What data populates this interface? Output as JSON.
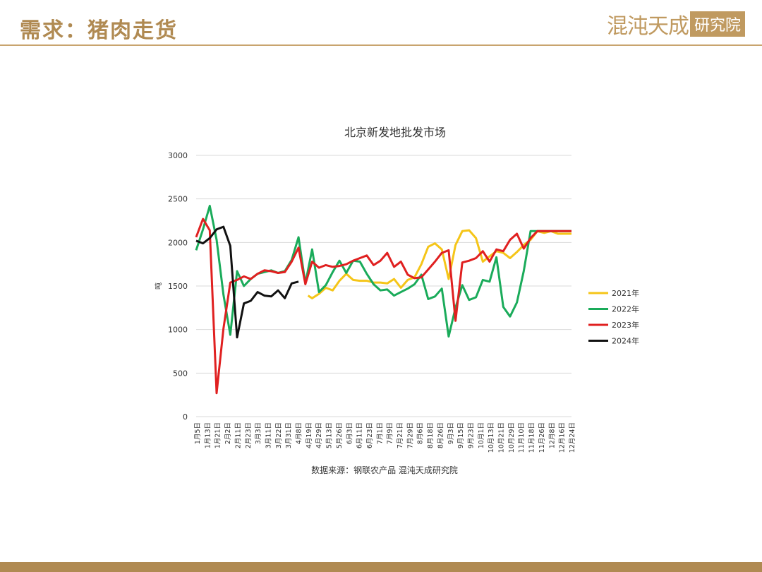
{
  "header": {
    "title": "需求：猪肉走货",
    "logo_main": "混沌天成",
    "logo_sub": "研究院"
  },
  "source_note": "数据来源：钢联农产品 混沌天成研究院",
  "colors": {
    "accent": "#b08a52",
    "rule": "#c8a46e",
    "grid": "#d9d9d9"
  },
  "chart_data": {
    "type": "line",
    "title": "北京新发地批发市场",
    "ylabel": "吨",
    "xlabel": "",
    "ylim": [
      0,
      3000
    ],
    "yticks": [
      0,
      500,
      1000,
      1500,
      2000,
      2500,
      3000
    ],
    "grid": true,
    "legend_position": "right",
    "categories": [
      "1月5日",
      "1月13日",
      "1月21日",
      "2月2日",
      "2月11日",
      "2月23日",
      "3月3日",
      "3月11日",
      "3月22日",
      "3月31日",
      "4月8日",
      "4月19日",
      "4月29日",
      "5月13日",
      "5月26日",
      "6月3日",
      "6月11日",
      "6月23日",
      "7月1日",
      "7月9日",
      "7月21日",
      "7月29日",
      "8月6日",
      "8月18日",
      "8月26日",
      "9月3日",
      "9月15日",
      "9月23日",
      "10月1日",
      "10月13日",
      "10月21日",
      "10月29日",
      "11月10日",
      "11月18日",
      "11月26日",
      "12月8日",
      "12月16日",
      "12月24日"
    ],
    "series": [
      {
        "name": "2021年",
        "color": "#f5c518",
        "x": [
          16.4,
          17,
          18,
          19,
          20,
          21,
          22,
          23,
          24,
          25,
          26,
          27,
          28,
          29,
          30,
          31,
          32,
          33,
          34,
          35,
          36,
          37,
          38,
          39,
          40,
          41,
          42,
          43,
          44,
          45,
          46,
          47,
          48,
          49,
          50,
          51,
          52,
          53,
          54,
          55
        ],
        "values": [
          1390,
          1360,
          1410,
          1480,
          1450,
          1560,
          1640,
          1570,
          1560,
          1560,
          1540,
          1540,
          1530,
          1580,
          1480,
          1570,
          1600,
          1750,
          1950,
          1990,
          1920,
          1580,
          1970,
          2130,
          2140,
          2050,
          1780,
          1840,
          1900,
          1880,
          1820,
          1890,
          1970,
          2030,
          2130,
          2110,
          2130,
          2100,
          2100,
          2100
        ]
      },
      {
        "name": "2022年",
        "color": "#1aab5a",
        "x": [
          0,
          1,
          2,
          3,
          4,
          5,
          6,
          7,
          8,
          9,
          10,
          11,
          12,
          13,
          14,
          15,
          16,
          17,
          18,
          19,
          20,
          21,
          22,
          23,
          24,
          25,
          26,
          27,
          28,
          29,
          30,
          31,
          32,
          33,
          34,
          35,
          36,
          37,
          38,
          39,
          40,
          41,
          42,
          43,
          44,
          45,
          46,
          47,
          48,
          49,
          50,
          51,
          52,
          53,
          54,
          55
        ],
        "values": [
          1910,
          2150,
          2420,
          2030,
          1400,
          940,
          1670,
          1500,
          1580,
          1640,
          1660,
          1680,
          1650,
          1670,
          1800,
          2060,
          1530,
          1920,
          1430,
          1510,
          1660,
          1790,
          1650,
          1790,
          1780,
          1640,
          1520,
          1450,
          1460,
          1390,
          1430,
          1470,
          1520,
          1630,
          1350,
          1380,
          1470,
          920,
          1250,
          1510,
          1340,
          1370,
          1570,
          1550,
          1830,
          1260,
          1150,
          1310,
          1670,
          2130,
          2130,
          2130,
          2130,
          2130,
          2130,
          2130
        ]
      },
      {
        "name": "2023年",
        "color": "#e02020",
        "x": [
          0,
          1,
          2,
          3,
          4,
          5,
          6,
          7,
          8,
          9,
          10,
          11,
          12,
          13,
          14,
          15,
          16,
          17,
          18,
          19,
          20,
          21,
          22,
          23,
          24,
          25,
          26,
          27,
          28,
          29,
          30,
          31,
          32,
          33,
          34,
          35,
          36,
          37,
          38,
          39,
          40,
          41,
          42,
          43,
          44,
          45,
          46,
          47,
          48,
          49,
          50,
          51,
          52,
          53,
          54,
          55
        ],
        "values": [
          2060,
          2270,
          2140,
          270,
          1010,
          1540,
          1570,
          1610,
          1580,
          1640,
          1680,
          1670,
          1650,
          1660,
          1780,
          1940,
          1520,
          1780,
          1710,
          1740,
          1720,
          1730,
          1750,
          1790,
          1820,
          1850,
          1740,
          1790,
          1880,
          1720,
          1780,
          1630,
          1590,
          1600,
          1690,
          1780,
          1880,
          1910,
          1100,
          1770,
          1790,
          1820,
          1900,
          1780,
          1920,
          1900,
          2030,
          2100,
          1930,
          2050,
          2130,
          2130,
          2130,
          2130,
          2130,
          2130
        ]
      },
      {
        "name": "2024年",
        "color": "#111111",
        "x": [
          0,
          1,
          2,
          3,
          4,
          5,
          6,
          7,
          8,
          9,
          10,
          11,
          12,
          13,
          14,
          15
        ],
        "values": [
          2020,
          1990,
          2050,
          2150,
          2180,
          1960,
          910,
          1300,
          1330,
          1430,
          1390,
          1380,
          1450,
          1360,
          1530,
          1550
        ]
      }
    ]
  }
}
